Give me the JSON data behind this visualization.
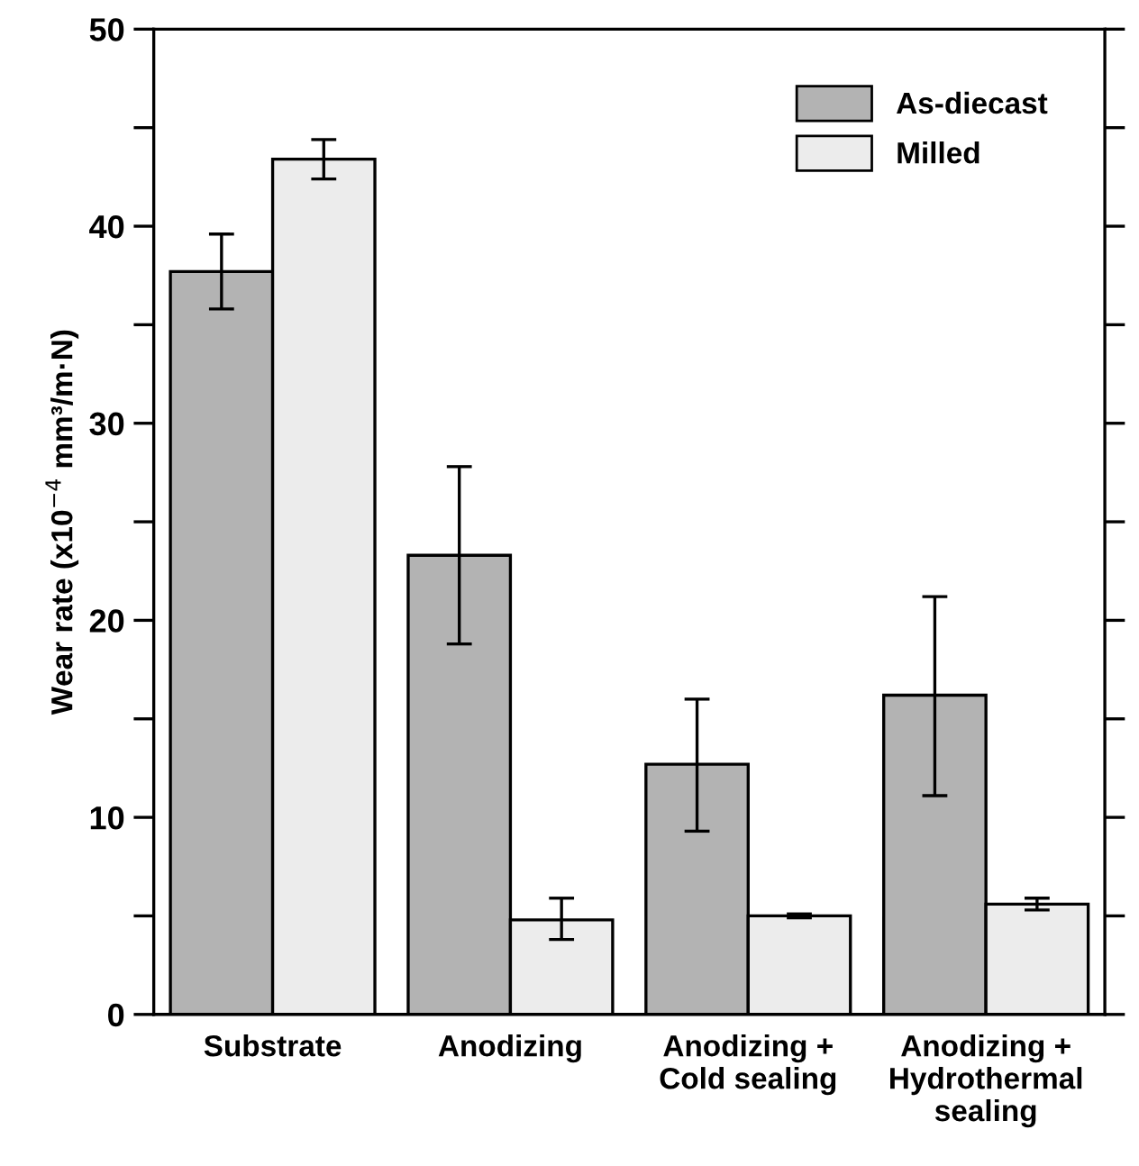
{
  "chart_data": {
    "type": "bar",
    "ylabel": "Wear rate (x10$^{−4}$ mm³/m·N)",
    "categories": [
      "Substrate",
      "Anodizing",
      "Anodizing +\nCold sealing",
      "Anodizing +\nHydrothermal\nsealing"
    ],
    "series": [
      {
        "name": "As-diecast",
        "color": "#b3b3b3",
        "values": [
          37.7,
          23.3,
          12.7,
          16.2
        ],
        "errors": [
          [
            35.8,
            39.6
          ],
          [
            18.8,
            27.8
          ],
          [
            9.3,
            16.0
          ],
          [
            11.1,
            21.2
          ]
        ]
      },
      {
        "name": "Milled",
        "color": "#ececec",
        "values": [
          43.4,
          4.8,
          5.0,
          5.6
        ],
        "errors": [
          [
            42.4,
            44.4
          ],
          [
            3.8,
            5.9
          ],
          [
            4.9,
            5.1
          ],
          [
            5.3,
            5.9
          ]
        ]
      }
    ],
    "ylim": [
      0,
      50
    ],
    "yticks": [
      0,
      {
        "value": 5,
        "label": null
      },
      10,
      {
        "value": 15,
        "label": null
      },
      20,
      {
        "value": 25,
        "label": null
      },
      30,
      {
        "value": 35,
        "label": null
      },
      40,
      {
        "value": 45,
        "label": null
      },
      50
    ],
    "legend": "top right",
    "grid": false
  }
}
